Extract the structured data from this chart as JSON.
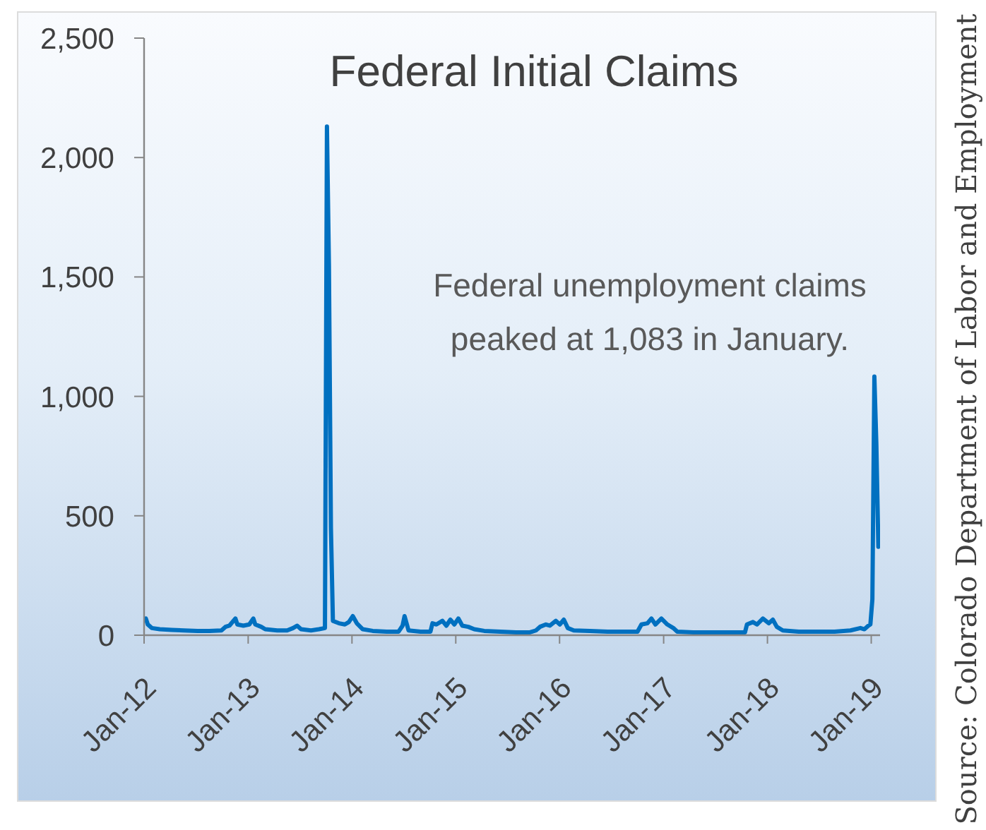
{
  "chart_data": {
    "type": "line",
    "title": "Federal Initial Claims",
    "annotations": [
      "Federal unemployment claims peaked at 1,083 in January.",
      "Source: Colorado Department of Labor and Employment"
    ],
    "x": [
      "2012-01-07",
      "2012-01-14",
      "2012-01-28",
      "2012-02-25",
      "2012-04-07",
      "2012-05-19",
      "2012-07-07",
      "2012-08-18",
      "2012-09-29",
      "2012-10-13",
      "2012-10-27",
      "2012-11-17",
      "2012-11-24",
      "2012-12-15",
      "2013-01-05",
      "2013-01-19",
      "2013-01-26",
      "2013-02-16",
      "2013-03-02",
      "2013-04-13",
      "2013-05-18",
      "2013-06-08",
      "2013-06-22",
      "2013-07-06",
      "2013-08-10",
      "2013-09-07",
      "2013-09-28",
      "2013-10-05",
      "2013-10-12",
      "2013-10-19",
      "2013-10-26",
      "2013-11-16",
      "2013-12-07",
      "2013-12-21",
      "2014-01-04",
      "2014-01-18",
      "2014-02-08",
      "2014-03-15",
      "2014-05-03",
      "2014-06-14",
      "2014-06-28",
      "2014-07-05",
      "2014-07-19",
      "2014-08-30",
      "2014-10-04",
      "2014-10-11",
      "2014-10-25",
      "2014-11-15",
      "2014-11-29",
      "2014-12-13",
      "2014-12-27",
      "2015-01-10",
      "2015-01-24",
      "2015-02-14",
      "2015-03-07",
      "2015-04-11",
      "2015-06-06",
      "2015-08-01",
      "2015-09-19",
      "2015-10-10",
      "2015-10-24",
      "2015-11-14",
      "2015-11-28",
      "2015-12-19",
      "2016-01-02",
      "2016-01-16",
      "2016-01-30",
      "2016-02-20",
      "2016-04-16",
      "2016-06-18",
      "2016-08-20",
      "2016-10-01",
      "2016-10-15",
      "2016-11-05",
      "2016-11-19",
      "2016-12-03",
      "2016-12-24",
      "2017-01-14",
      "2017-02-04",
      "2017-02-18",
      "2017-04-15",
      "2017-06-17",
      "2017-08-19",
      "2017-10-14",
      "2017-10-21",
      "2017-11-11",
      "2017-11-25",
      "2017-12-16",
      "2018-01-06",
      "2018-01-20",
      "2018-02-03",
      "2018-02-24",
      "2018-04-21",
      "2018-06-23",
      "2018-08-25",
      "2018-10-20",
      "2018-11-24",
      "2018-12-08",
      "2018-12-22",
      "2018-12-29",
      "2019-01-05",
      "2019-01-12",
      "2019-01-19",
      "2019-01-26"
    ],
    "values": [
      70,
      45,
      30,
      25,
      22,
      20,
      18,
      18,
      20,
      35,
      40,
      70,
      45,
      40,
      45,
      70,
      45,
      35,
      25,
      20,
      20,
      30,
      40,
      25,
      20,
      25,
      30,
      2130,
      1550,
      450,
      60,
      50,
      45,
      55,
      80,
      50,
      25,
      18,
      15,
      15,
      40,
      80,
      20,
      15,
      15,
      50,
      45,
      60,
      40,
      65,
      45,
      70,
      40,
      35,
      25,
      18,
      15,
      12,
      12,
      20,
      35,
      45,
      40,
      60,
      45,
      65,
      30,
      20,
      18,
      15,
      15,
      15,
      45,
      50,
      70,
      45,
      70,
      45,
      30,
      15,
      12,
      12,
      12,
      12,
      45,
      55,
      45,
      70,
      50,
      65,
      35,
      20,
      15,
      15,
      15,
      20,
      30,
      25,
      40,
      45,
      150,
      1083,
      800,
      370
    ],
    "color": "#0070c0",
    "xlim": [
      "2012-01-01",
      "2019-02-01"
    ],
    "xticks": [
      {
        "value": "2012-01-01",
        "label": "Jan-12"
      },
      {
        "value": "2013-01-01",
        "label": "Jan-13"
      },
      {
        "value": "2014-01-01",
        "label": "Jan-14"
      },
      {
        "value": "2015-01-01",
        "label": "Jan-15"
      },
      {
        "value": "2016-01-01",
        "label": "Jan-16"
      },
      {
        "value": "2017-01-01",
        "label": "Jan-17"
      },
      {
        "value": "2018-01-01",
        "label": "Jan-18"
      },
      {
        "value": "2019-01-01",
        "label": "Jan-19"
      }
    ],
    "ylim": [
      0,
      2500
    ],
    "yticks": [
      0,
      500,
      {
        "value": 1000,
        "label": "1,000"
      },
      {
        "value": 1500,
        "label": "1,500"
      },
      {
        "value": 2000,
        "label": "2,000"
      },
      {
        "value": 2500,
        "label": "2,500"
      }
    ]
  }
}
